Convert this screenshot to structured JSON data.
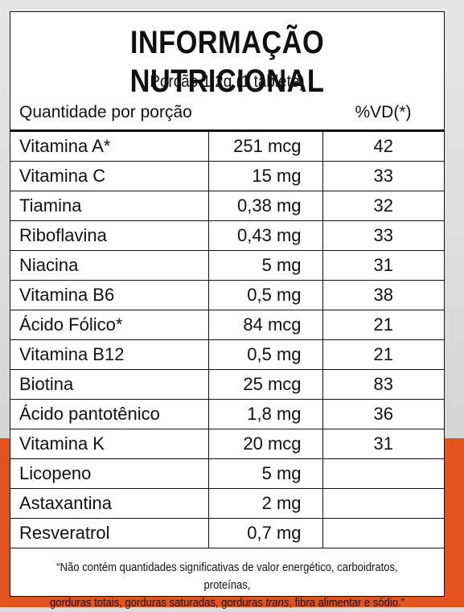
{
  "title": "INFORMAÇÃO NUTRICIONAL",
  "serving": "Porção 1,2g (1 tablete)",
  "header": {
    "quantity_label": "Quantidade por porção",
    "vd_label": "%VD(*)"
  },
  "rows": [
    {
      "name": "Vitamina A*",
      "amount": "251 mcg",
      "vd": "42"
    },
    {
      "name": "Vitamina C",
      "amount": "15 mg",
      "vd": "33"
    },
    {
      "name": "Tiamina",
      "amount": "0,38 mg",
      "vd": "32"
    },
    {
      "name": "Riboflavina",
      "amount": "0,43 mg",
      "vd": "33"
    },
    {
      "name": "Niacina",
      "amount": "5 mg",
      "vd": "31"
    },
    {
      "name": "Vitamina B6",
      "amount": "0,5 mg",
      "vd": "38"
    },
    {
      "name": "Ácido Fólico*",
      "amount": "84 mcg",
      "vd": "21"
    },
    {
      "name": "Vitamina B12",
      "amount": "0,5 mg",
      "vd": "21"
    },
    {
      "name": "Biotina",
      "amount": "25 mcg",
      "vd": "83"
    },
    {
      "name": "Ácido pantotênico",
      "amount": "1,8 mg",
      "vd": "36"
    },
    {
      "name": "Vitamina K",
      "amount": "20 mcg",
      "vd": "31"
    },
    {
      "name": "Licopeno",
      "amount": "5 mg",
      "vd": ""
    },
    {
      "name": "Astaxantina",
      "amount": "2 mg",
      "vd": ""
    },
    {
      "name": "Resveratrol",
      "amount": "0,7 mg",
      "vd": ""
    }
  ],
  "footnote": {
    "line1": "“Não contém quantidades significativas de valor energético, carboidratos, proteínas,",
    "line2_a": "gorduras totais, gorduras saturadas, gorduras ",
    "line2_italic": "trans",
    "line2_b": ", fibra alimentar e sódio.”"
  },
  "colors": {
    "accent_orange": "#e2531f",
    "panel_background": "#ffffff",
    "rule": "#111111"
  }
}
